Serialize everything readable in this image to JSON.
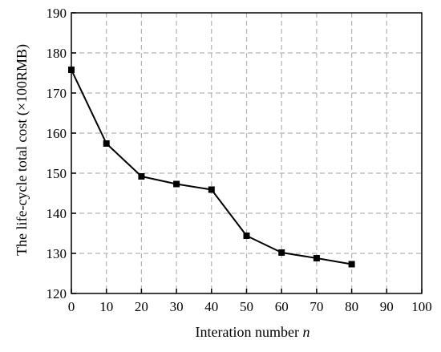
{
  "chart_data": {
    "type": "line",
    "title": "",
    "xlabel": "Interation number",
    "xlabel_var": "n",
    "ylabel": "The life-cycle total cost (×100RMB)",
    "xlim": [
      0,
      100
    ],
    "ylim": [
      120,
      190
    ],
    "xticks": [
      "0",
      "10",
      "20",
      "30",
      "40",
      "50",
      "60",
      "70",
      "80",
      "90",
      "100"
    ],
    "yticks": [
      "120",
      "130",
      "140",
      "150",
      "160",
      "170",
      "180",
      "190"
    ],
    "grid": true,
    "grid_style": "dashed",
    "legend": "none",
    "marker": "square",
    "colors": {
      "line": "#000000",
      "grid": "#b4b4b4",
      "axis": "#000000"
    },
    "series": [
      {
        "x": [
          0,
          10,
          20,
          30,
          40,
          50,
          60,
          70,
          80
        ],
        "values": [
          175.8,
          157.4,
          149.2,
          147.3,
          145.9,
          134.4,
          130.2,
          128.8,
          127.3
        ]
      }
    ]
  }
}
